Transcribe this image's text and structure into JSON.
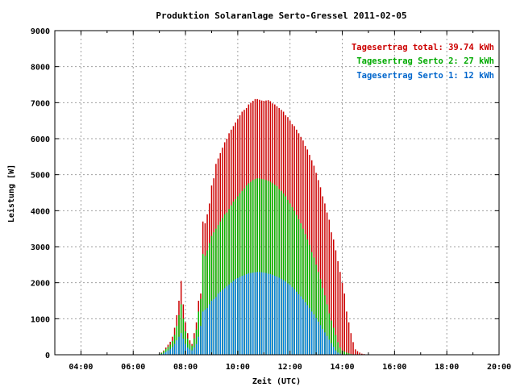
{
  "chart_data": {
    "type": "bar",
    "title": "Produktion Solaranlage Serto-Gressel 2011-02-05",
    "xlabel": "Zeit (UTC)",
    "ylabel": "Leistung [W]",
    "xlim": [
      3.0,
      20.0
    ],
    "ylim": [
      0,
      9000
    ],
    "x_ticks": [
      "04:00",
      "06:00",
      "08:00",
      "10:00",
      "12:00",
      "14:00",
      "16:00",
      "18:00",
      "20:00"
    ],
    "y_ticks": [
      "0",
      "1000",
      "2000",
      "3000",
      "4000",
      "5000",
      "6000",
      "7000",
      "8000",
      "9000"
    ],
    "grid": true,
    "legend_position": "top-right",
    "legend": [
      {
        "text": "Tagesertrag total: 39.74 kWh",
        "color": "#cc0000"
      },
      {
        "text": "Tagesertrag Serto 2: 27 kWh",
        "color": "#00aa00"
      },
      {
        "text": "Tagesertrag Serto 1: 12 kWh",
        "color": "#0066cc"
      }
    ],
    "series": [
      {
        "color": "#cc0000",
        "key": "total"
      },
      {
        "color": "#00bb00",
        "key": "serto2"
      },
      {
        "color": "#0080e0",
        "key": "serto1"
      }
    ],
    "sample_interval_min": 5,
    "x": [
      "07:00",
      "07:05",
      "07:10",
      "07:15",
      "07:20",
      "07:25",
      "07:30",
      "07:35",
      "07:40",
      "07:45",
      "07:50",
      "07:55",
      "08:00",
      "08:05",
      "08:10",
      "08:15",
      "08:20",
      "08:25",
      "08:30",
      "08:35",
      "08:40",
      "08:45",
      "08:50",
      "08:55",
      "09:00",
      "09:05",
      "09:10",
      "09:15",
      "09:20",
      "09:25",
      "09:30",
      "09:35",
      "09:40",
      "09:45",
      "09:50",
      "09:55",
      "10:00",
      "10:05",
      "10:10",
      "10:15",
      "10:20",
      "10:25",
      "10:30",
      "10:35",
      "10:40",
      "10:45",
      "10:50",
      "10:55",
      "11:00",
      "11:05",
      "11:10",
      "11:15",
      "11:20",
      "11:25",
      "11:30",
      "11:35",
      "11:40",
      "11:45",
      "11:50",
      "11:55",
      "12:00",
      "12:05",
      "12:10",
      "12:15",
      "12:20",
      "12:25",
      "12:30",
      "12:35",
      "12:40",
      "12:45",
      "12:50",
      "12:55",
      "13:00",
      "13:05",
      "13:10",
      "13:15",
      "13:20",
      "13:25",
      "13:30",
      "13:35",
      "13:40",
      "13:45",
      "13:50",
      "13:55",
      "14:00",
      "14:05",
      "14:10",
      "14:15",
      "14:20",
      "14:25",
      "14:30",
      "14:35",
      "14:40",
      "14:45",
      "14:50",
      "14:55",
      "15:00",
      "15:05",
      "15:10",
      "15:15",
      "15:20",
      "15:25",
      "15:30",
      "15:35",
      "15:40",
      "15:45",
      "15:50",
      "15:55",
      "16:00",
      "16:05",
      "16:10",
      "16:15",
      "16:20",
      "16:25"
    ],
    "total": [
      20,
      60,
      120,
      200,
      280,
      360,
      500,
      750,
      1100,
      1500,
      2050,
      1400,
      900,
      600,
      400,
      300,
      600,
      900,
      1500,
      1700,
      3700,
      3650,
      3900,
      4200,
      4700,
      4900,
      5300,
      5450,
      5600,
      5750,
      5900,
      6000,
      6150,
      6250,
      6350,
      6450,
      6550,
      6650,
      6750,
      6800,
      6850,
      6950,
      7000,
      7050,
      7100,
      7100,
      7080,
      7060,
      7050,
      7060,
      7070,
      7040,
      6980,
      6950,
      6900,
      6850,
      6800,
      6750,
      6650,
      6600,
      6500,
      6400,
      6350,
      6250,
      6150,
      6050,
      5950,
      5800,
      5700,
      5550,
      5400,
      5250,
      5050,
      4850,
      4650,
      4400,
      4200,
      3950,
      3750,
      3400,
      3200,
      2900,
      2600,
      2300,
      2000,
      1700,
      1200,
      900,
      600,
      350,
      150,
      100,
      60,
      30,
      20,
      10,
      0,
      0,
      0,
      0,
      0,
      0,
      0,
      0,
      0,
      0,
      0,
      0,
      0,
      0,
      0,
      0,
      0,
      0
    ],
    "serto2": [
      20,
      50,
      100,
      160,
      220,
      280,
      380,
      550,
      800,
      1100,
      1400,
      1000,
      650,
      450,
      300,
      250,
      450,
      700,
      1200,
      1550,
      2800,
      2750,
      2900,
      3100,
      3300,
      3400,
      3500,
      3600,
      3700,
      3800,
      3900,
      3950,
      4050,
      4150,
      4250,
      4320,
      4400,
      4480,
      4550,
      4620,
      4700,
      4760,
      4800,
      4850,
      4880,
      4900,
      4900,
      4880,
      4870,
      4850,
      4830,
      4800,
      4760,
      4720,
      4680,
      4600,
      4550,
      4480,
      4400,
      4300,
      4200,
      4100,
      4000,
      3880,
      3760,
      3650,
      3500,
      3350,
      3200,
      3050,
      2850,
      2700,
      2500,
      2300,
      2100,
      1850,
      1650,
      1400,
      1150,
      950,
      750,
      550,
      350,
      200,
      120,
      90,
      60,
      40,
      20,
      10,
      0,
      0,
      0,
      0,
      0,
      0,
      0,
      0,
      0,
      0,
      0,
      0,
      0,
      0,
      0,
      0,
      0,
      0,
      0,
      0,
      0,
      0,
      0
    ],
    "serto1": [
      0,
      20,
      40,
      80,
      120,
      160,
      220,
      300,
      400,
      500,
      600,
      450,
      300,
      200,
      150,
      120,
      200,
      300,
      500,
      800,
      1200,
      1250,
      1300,
      1400,
      1500,
      1550,
      1600,
      1700,
      1750,
      1800,
      1850,
      1900,
      1950,
      2000,
      2050,
      2100,
      2130,
      2160,
      2190,
      2210,
      2240,
      2260,
      2270,
      2280,
      2290,
      2300,
      2300,
      2290,
      2280,
      2270,
      2250,
      2240,
      2220,
      2190,
      2170,
      2140,
      2110,
      2070,
      2030,
      1980,
      1940,
      1880,
      1820,
      1750,
      1680,
      1620,
      1540,
      1460,
      1380,
      1300,
      1200,
      1120,
      1020,
      920,
      820,
      720,
      620,
      520,
      420,
      320,
      220,
      120,
      60,
      30,
      15,
      0,
      0,
      0,
      0,
      0,
      0,
      0,
      0,
      0,
      0,
      0,
      0,
      0,
      0,
      0,
      0,
      0,
      0,
      0,
      0,
      0,
      0,
      0,
      0,
      0,
      0,
      0,
      0,
      0,
      0,
      0,
      0,
      0
    ]
  }
}
